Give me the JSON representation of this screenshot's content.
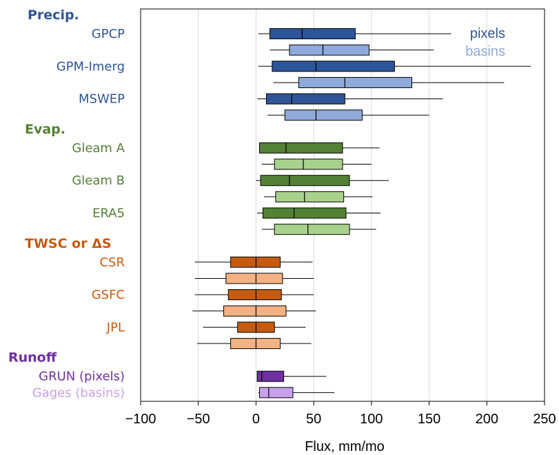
{
  "chart_data": {
    "type": "boxplot",
    "orientation": "horizontal",
    "xlabel": "Flux, mm/mo",
    "xlim": [
      -100,
      250
    ],
    "xticks": [
      -100,
      -50,
      0,
      50,
      100,
      150,
      200,
      250
    ],
    "xtick_labels": [
      "−100",
      "−50",
      "0",
      "50",
      "100",
      "150",
      "200",
      "250"
    ],
    "grid": "vertical",
    "legend": {
      "placement": "top-right",
      "entries": [
        {
          "label": "pixels",
          "color": "#2e5597"
        },
        {
          "label": "basins",
          "color": "#8eaadb"
        }
      ]
    },
    "groups": [
      {
        "title": "Precip.",
        "color": "#2e5597"
      },
      {
        "title": "Evap.",
        "color": "#538135"
      },
      {
        "title": "TWSC or ΔS",
        "color": "#c55a11"
      },
      {
        "title": "Runoff",
        "color": "#7030a0"
      }
    ],
    "datasets": [
      {
        "label": "GPCP",
        "group": 0,
        "label_color": "#2e5597",
        "boxes": [
          {
            "kind": "pixels",
            "color": "#2e5597",
            "whisker_low": 2,
            "q1": 12,
            "median": 40,
            "q3": 86,
            "whisker_high": 169
          },
          {
            "kind": "basins",
            "color": "#8eaadb",
            "whisker_low": 12,
            "q1": 29,
            "median": 58,
            "q3": 98,
            "whisker_high": 154
          }
        ]
      },
      {
        "label": "GPM-Imerg",
        "group": 0,
        "label_color": "#2e5597",
        "boxes": [
          {
            "kind": "pixels",
            "color": "#2e5597",
            "whisker_low": 2,
            "q1": 14,
            "median": 52,
            "q3": 120,
            "whisker_high": 238
          },
          {
            "kind": "basins",
            "color": "#8eaadb",
            "whisker_low": 15,
            "q1": 37,
            "median": 77,
            "q3": 135,
            "whisker_high": 215
          }
        ]
      },
      {
        "label": "MSWEP",
        "group": 0,
        "label_color": "#2e5597",
        "boxes": [
          {
            "kind": "pixels",
            "color": "#2e5597",
            "whisker_low": 1,
            "q1": 9,
            "median": 31,
            "q3": 77,
            "whisker_high": 162
          },
          {
            "kind": "basins",
            "color": "#8eaadb",
            "whisker_low": 10,
            "q1": 25,
            "median": 52,
            "q3": 92,
            "whisker_high": 150
          }
        ]
      },
      {
        "label": "Gleam A",
        "group": 1,
        "label_color": "#538135",
        "boxes": [
          {
            "kind": "pixels",
            "color": "#538135",
            "whisker_low": 3,
            "q1": 3,
            "median": 26,
            "q3": 75,
            "whisker_high": 107
          },
          {
            "kind": "basins",
            "color": "#a9d18e",
            "whisker_low": 5,
            "q1": 16,
            "median": 41,
            "q3": 75,
            "whisker_high": 100
          }
        ]
      },
      {
        "label": "Gleam B",
        "group": 1,
        "label_color": "#538135",
        "boxes": [
          {
            "kind": "pixels",
            "color": "#538135",
            "whisker_low": 0,
            "q1": 4,
            "median": 29,
            "q3": 81,
            "whisker_high": 115
          },
          {
            "kind": "basins",
            "color": "#a9d18e",
            "whisker_low": 7,
            "q1": 17,
            "median": 42,
            "q3": 76,
            "whisker_high": 101
          }
        ]
      },
      {
        "label": "ERA5",
        "group": 1,
        "label_color": "#538135",
        "boxes": [
          {
            "kind": "pixels",
            "color": "#538135",
            "whisker_low": 1,
            "q1": 6,
            "median": 33,
            "q3": 78,
            "whisker_high": 108
          },
          {
            "kind": "basins",
            "color": "#a9d18e",
            "whisker_low": 5,
            "q1": 16,
            "median": 45,
            "q3": 81,
            "whisker_high": 104
          }
        ]
      },
      {
        "label": "CSR",
        "group": 2,
        "label_color": "#c55a11",
        "boxes": [
          {
            "kind": "pixels",
            "color": "#c55a11",
            "whisker_low": -53,
            "q1": -22,
            "median": 0,
            "q3": 21,
            "whisker_high": 49
          },
          {
            "kind": "basins",
            "color": "#f4b183",
            "whisker_low": -53,
            "q1": -26,
            "median": 0,
            "q3": 23,
            "whisker_high": 50
          }
        ]
      },
      {
        "label": "GSFC",
        "group": 2,
        "label_color": "#c55a11",
        "boxes": [
          {
            "kind": "pixels",
            "color": "#c55a11",
            "whisker_low": -53,
            "q1": -24,
            "median": 0,
            "q3": 22,
            "whisker_high": 50
          },
          {
            "kind": "basins",
            "color": "#f4b183",
            "whisker_low": -55,
            "q1": -28,
            "median": 0,
            "q3": 26,
            "whisker_high": 52
          }
        ]
      },
      {
        "label": "JPL",
        "group": 2,
        "label_color": "#c55a11",
        "boxes": [
          {
            "kind": "pixels",
            "color": "#c55a11",
            "whisker_low": -46,
            "q1": -16,
            "median": 0,
            "q3": 16,
            "whisker_high": 43
          },
          {
            "kind": "basins",
            "color": "#f4b183",
            "whisker_low": -51,
            "q1": -22,
            "median": 0,
            "q3": 21,
            "whisker_high": 48
          }
        ]
      },
      {
        "label": "GRUN (pixels)",
        "group": 3,
        "label_color": "#7030a0",
        "boxes": [
          {
            "kind": "pixels",
            "color": "#7030a0",
            "whisker_low": 1,
            "q1": 1,
            "median": 5,
            "q3": 24,
            "whisker_high": 61
          }
        ]
      },
      {
        "label": "Gages (basins)",
        "group": 3,
        "label_color": "#c9a0ee",
        "boxes": [
          {
            "kind": "basins",
            "color": "#c9a0ee",
            "whisker_low": 2,
            "q1": 3,
            "median": 11,
            "q3": 32,
            "whisker_high": 68
          }
        ]
      }
    ]
  }
}
